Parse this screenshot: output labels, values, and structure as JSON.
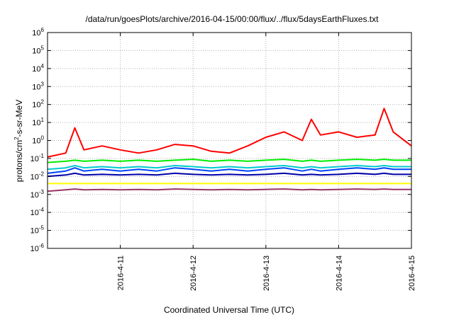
{
  "chart_data": {
    "type": "line",
    "title": "/data/run/goesPlots/archive/2016-04-15/00:00/flux/../flux/5daysEarthFluxes.txt",
    "xlabel": "Coordinated Universal Time (UTC)",
    "ylabel": {
      "base": "protons/cm",
      "sup": "2",
      "rest": "-s-sr-MeV"
    },
    "y_scale": "log",
    "ylim": [
      1e-06,
      1000000.0
    ],
    "y_ticks": [
      {
        "value": 1e-06,
        "base": "10",
        "exp": "-6"
      },
      {
        "value": 1e-05,
        "base": "10",
        "exp": "-5"
      },
      {
        "value": 0.0001,
        "base": "10",
        "exp": "-4"
      },
      {
        "value": 0.001,
        "base": "10",
        "exp": "-3"
      },
      {
        "value": 0.01,
        "base": "10",
        "exp": "-2"
      },
      {
        "value": 0.1,
        "base": "10",
        "exp": "-1"
      },
      {
        "value": 1.0,
        "base": "10",
        "exp": "0"
      },
      {
        "value": 10.0,
        "base": "10",
        "exp": "1"
      },
      {
        "value": 100.0,
        "base": "10",
        "exp": "2"
      },
      {
        "value": 1000.0,
        "base": "10",
        "exp": "3"
      },
      {
        "value": 10000.0,
        "base": "10",
        "exp": "4"
      },
      {
        "value": 100000.0,
        "base": "10",
        "exp": "5"
      },
      {
        "value": 1000000.0,
        "base": "10",
        "exp": "6"
      }
    ],
    "x_range": [
      "2016-04-10 00:00",
      "2016-04-15 00:00"
    ],
    "x_ticks": [
      {
        "date": "2016-04-11 00:00",
        "label": "2016-4-11"
      },
      {
        "date": "2016-04-12 00:00",
        "label": "2016-4-12"
      },
      {
        "date": "2016-04-13 00:00",
        "label": "2016-4-13"
      },
      {
        "date": "2016-04-14 00:00",
        "label": "2016-4-14"
      },
      {
        "date": "2016-04-15 00:00",
        "label": "2016-4-15"
      }
    ],
    "grid": true,
    "x": [
      "2016-04-10 00:00",
      "2016-04-10 06:00",
      "2016-04-10 09:00",
      "2016-04-10 12:00",
      "2016-04-10 18:00",
      "2016-04-11 00:00",
      "2016-04-11 06:00",
      "2016-04-11 12:00",
      "2016-04-11 18:00",
      "2016-04-12 00:00",
      "2016-04-12 06:00",
      "2016-04-12 12:00",
      "2016-04-12 18:00",
      "2016-04-13 00:00",
      "2016-04-13 06:00",
      "2016-04-13 12:00",
      "2016-04-13 15:00",
      "2016-04-13 18:00",
      "2016-04-14 00:00",
      "2016-04-14 06:00",
      "2016-04-14 12:00",
      "2016-04-14 15:00",
      "2016-04-14 18:00",
      "2016-04-15 00:00"
    ],
    "series": [
      {
        "color": "#ff0000",
        "values": [
          0.12,
          0.2,
          5,
          0.3,
          0.5,
          0.3,
          0.2,
          0.3,
          0.6,
          0.5,
          0.25,
          0.2,
          0.5,
          1.5,
          3,
          1,
          15,
          2,
          3,
          1.5,
          2,
          60,
          3,
          0.5
        ]
      },
      {
        "color": "#00ee00",
        "values": [
          0.06,
          0.07,
          0.08,
          0.07,
          0.08,
          0.07,
          0.08,
          0.07,
          0.08,
          0.09,
          0.07,
          0.08,
          0.07,
          0.08,
          0.09,
          0.07,
          0.08,
          0.07,
          0.08,
          0.09,
          0.08,
          0.09,
          0.08,
          0.08
        ]
      },
      {
        "color": "#00cccc",
        "values": [
          0.025,
          0.03,
          0.04,
          0.03,
          0.035,
          0.03,
          0.035,
          0.03,
          0.04,
          0.035,
          0.03,
          0.035,
          0.03,
          0.035,
          0.04,
          0.03,
          0.035,
          0.03,
          0.035,
          0.04,
          0.035,
          0.04,
          0.035,
          0.035
        ]
      },
      {
        "color": "#0044ff",
        "values": [
          0.015,
          0.02,
          0.03,
          0.02,
          0.025,
          0.02,
          0.025,
          0.02,
          0.03,
          0.025,
          0.02,
          0.025,
          0.02,
          0.025,
          0.03,
          0.02,
          0.025,
          0.02,
          0.025,
          0.03,
          0.025,
          0.03,
          0.025,
          0.025
        ]
      },
      {
        "color": "#0000aa",
        "values": [
          0.01,
          0.012,
          0.015,
          0.012,
          0.013,
          0.012,
          0.013,
          0.012,
          0.015,
          0.013,
          0.012,
          0.013,
          0.012,
          0.013,
          0.015,
          0.012,
          0.013,
          0.012,
          0.013,
          0.015,
          0.013,
          0.015,
          0.013,
          0.013
        ]
      },
      {
        "color": "#ffff00",
        "values": [
          0.004,
          0.004,
          0.004,
          0.004,
          0.004,
          0.004,
          0.004,
          0.004,
          0.004,
          0.004,
          0.004,
          0.004,
          0.004,
          0.004,
          0.004,
          0.004,
          0.004,
          0.004,
          0.004,
          0.004,
          0.004,
          0.004,
          0.004,
          0.004
        ]
      },
      {
        "color": "#993366",
        "values": [
          0.0015,
          0.0018,
          0.002,
          0.0018,
          0.0019,
          0.0018,
          0.0019,
          0.0018,
          0.002,
          0.0019,
          0.0018,
          0.0019,
          0.0018,
          0.0019,
          0.002,
          0.0018,
          0.0019,
          0.0018,
          0.0019,
          0.002,
          0.0019,
          0.002,
          0.0019,
          0.0019
        ]
      }
    ]
  }
}
